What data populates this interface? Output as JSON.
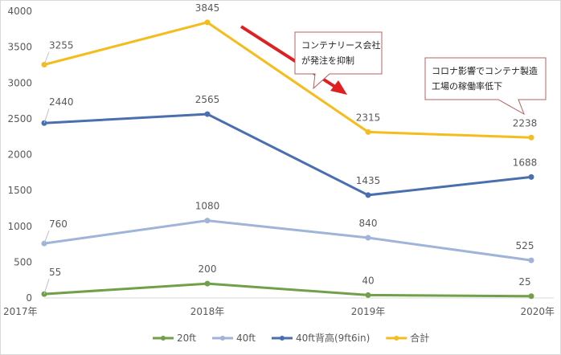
{
  "chart_data": {
    "type": "line",
    "categories": [
      "2017年",
      "2018年",
      "2019年",
      "2020年"
    ],
    "ylim": [
      0,
      4000
    ],
    "yticks": [
      0,
      500,
      1000,
      1500,
      2000,
      2500,
      3000,
      3500,
      4000
    ],
    "grid": false,
    "legend_position": "bottom",
    "series": [
      {
        "name": "20ft",
        "color": "#70a04a",
        "values": [
          55,
          200,
          40,
          25
        ]
      },
      {
        "name": "40ft",
        "color": "#9fb4d8",
        "values": [
          760,
          1080,
          840,
          525
        ]
      },
      {
        "name": "40ft背高(9ft6in)",
        "color": "#4a6fae",
        "values": [
          2440,
          2565,
          1435,
          1688
        ]
      },
      {
        "name": "合計",
        "color": "#f4bc1c",
        "values": [
          3255,
          3845,
          2315,
          2238
        ]
      }
    ],
    "annotations": [
      {
        "lines": [
          "コンテナリース会社",
          "が発注を抑制"
        ]
      },
      {
        "lines": [
          "コロナ影響でコンテナ製造",
          "工場の稼働率低下"
        ]
      }
    ],
    "arrow_color": "#e02020"
  }
}
